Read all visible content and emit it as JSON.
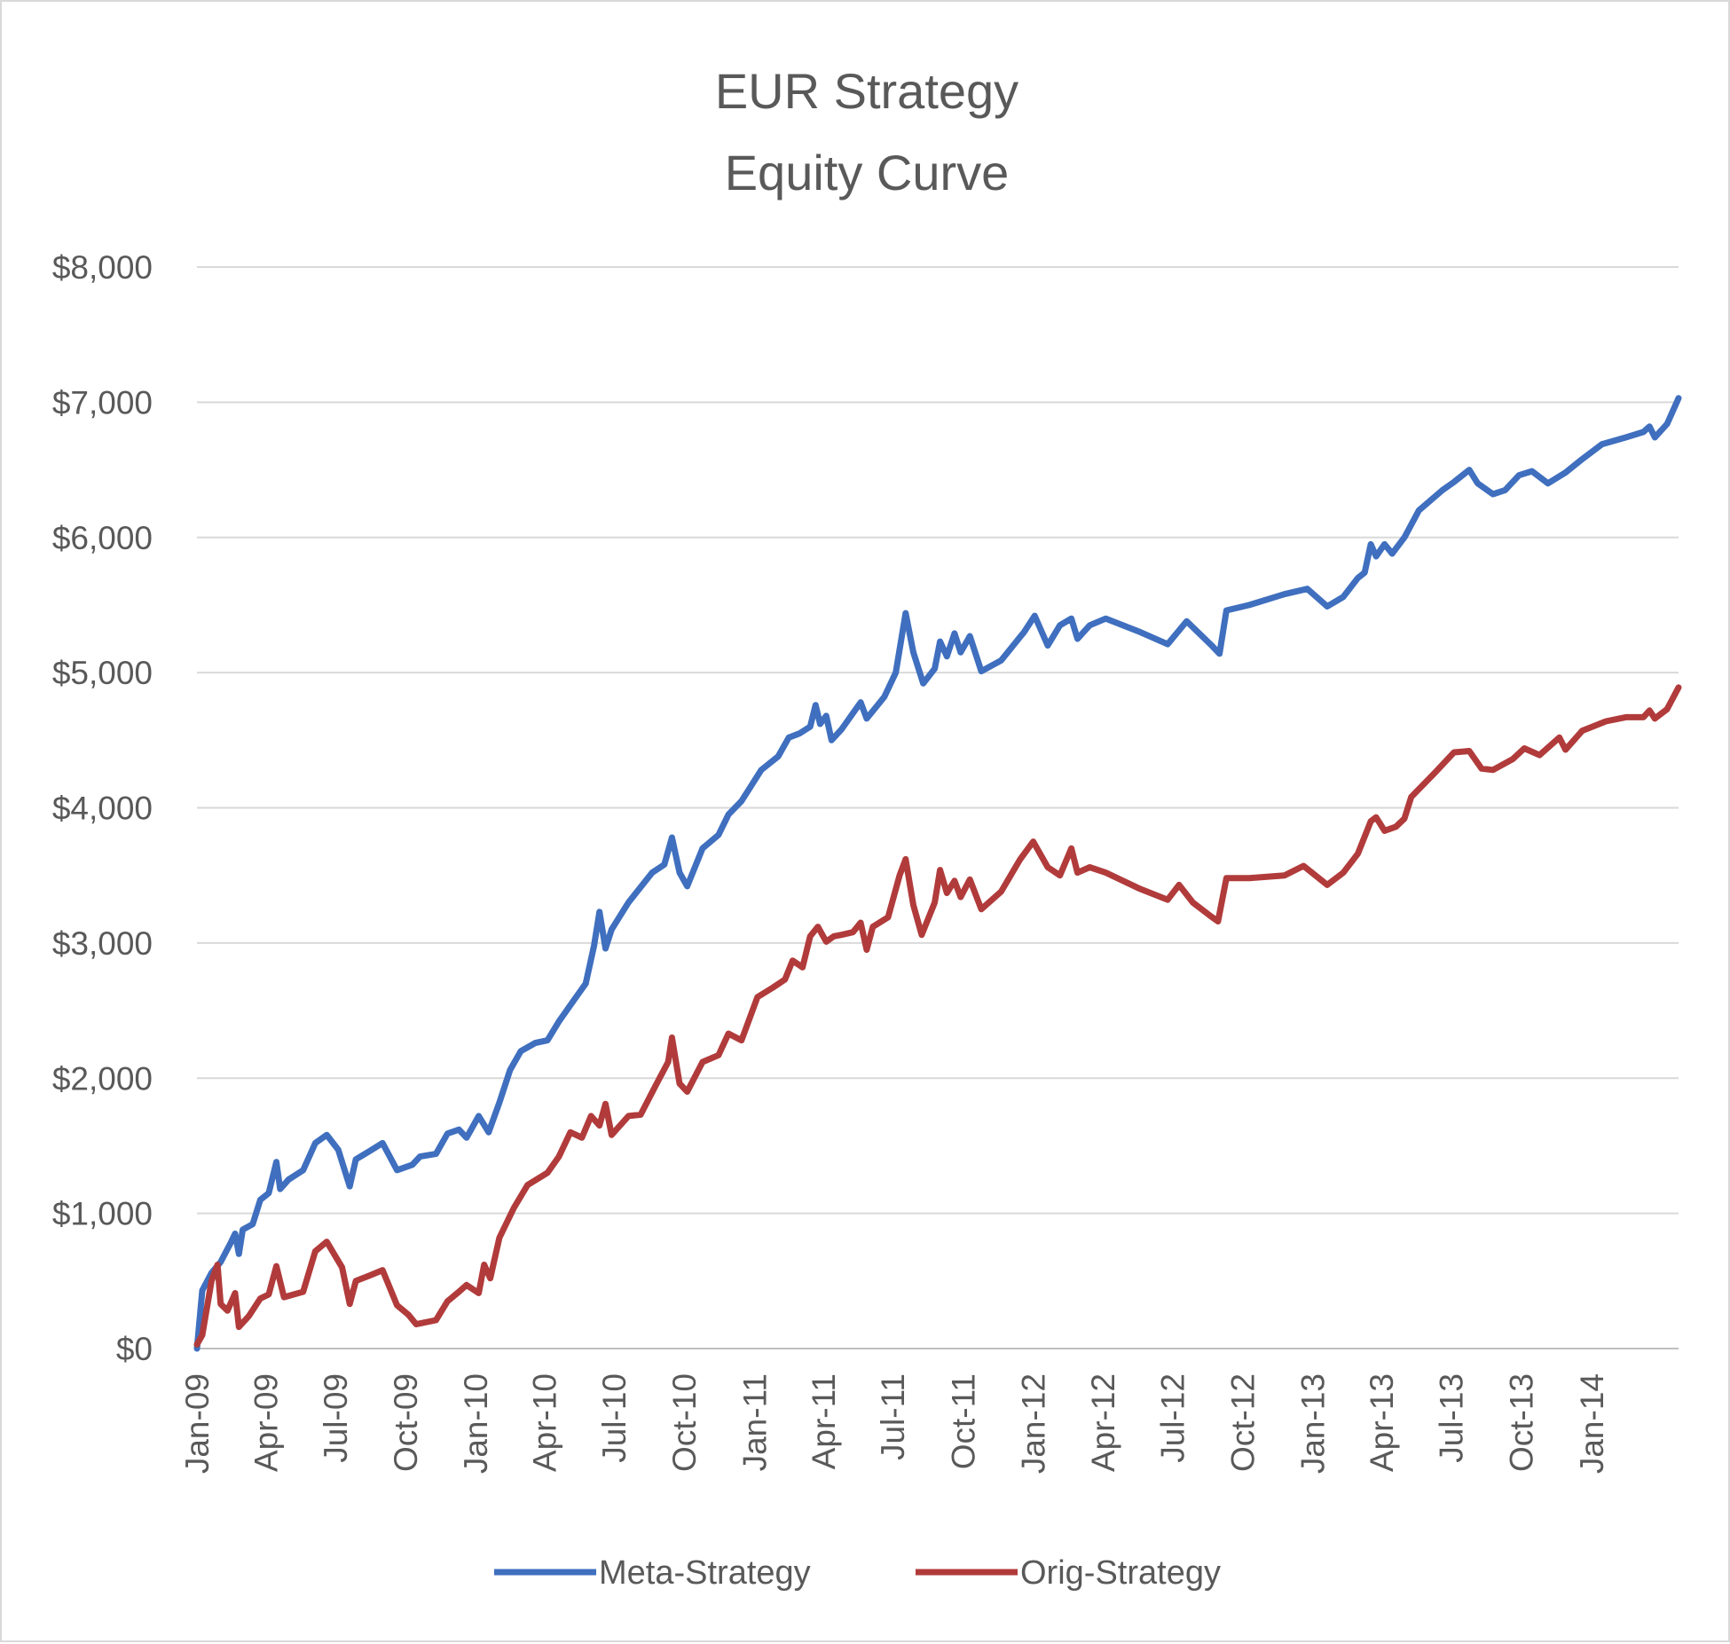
{
  "chart_data": {
    "type": "line",
    "title": [
      "EUR Strategy",
      "Equity Curve"
    ],
    "xlabel": "",
    "ylabel": "",
    "x_ticks": [
      "Jan-09",
      "Apr-09",
      "Jul-09",
      "Oct-09",
      "Jan-10",
      "Apr-10",
      "Jul-10",
      "Oct-10",
      "Jan-11",
      "Apr-11",
      "Jul-11",
      "Oct-11",
      "Jan-12",
      "Apr-12",
      "Jul-12",
      "Oct-12",
      "Jan-13",
      "Apr-13",
      "Jul-13",
      "Oct-13",
      "Jan-14"
    ],
    "x_range": [
      "2009-01-01",
      "2014-04-25"
    ],
    "y_ticks": [
      "$0",
      "$1,000",
      "$2,000",
      "$3,000",
      "$4,000",
      "$5,000",
      "$6,000",
      "$7,000",
      "$8,000"
    ],
    "ylim": [
      0,
      8000
    ],
    "grid": true,
    "legend_position": "bottom",
    "series": [
      {
        "name": "Meta-Strategy",
        "color": "#3f6fbe",
        "points": [
          [
            "2009-01-01",
            0
          ],
          [
            "2009-01-08",
            430
          ],
          [
            "2009-01-20",
            560
          ],
          [
            "2009-02-01",
            640
          ],
          [
            "2009-02-14",
            780
          ],
          [
            "2009-02-20",
            850
          ],
          [
            "2009-02-25",
            700
          ],
          [
            "2009-03-02",
            880
          ],
          [
            "2009-03-15",
            920
          ],
          [
            "2009-03-25",
            1100
          ],
          [
            "2009-04-05",
            1150
          ],
          [
            "2009-04-15",
            1380
          ],
          [
            "2009-04-20",
            1180
          ],
          [
            "2009-05-01",
            1250
          ],
          [
            "2009-05-20",
            1320
          ],
          [
            "2009-06-05",
            1520
          ],
          [
            "2009-06-20",
            1580
          ],
          [
            "2009-07-05",
            1470
          ],
          [
            "2009-07-20",
            1200
          ],
          [
            "2009-07-28",
            1400
          ],
          [
            "2009-08-15",
            1460
          ],
          [
            "2009-09-01",
            1520
          ],
          [
            "2009-09-20",
            1320
          ],
          [
            "2009-10-10",
            1360
          ],
          [
            "2009-10-20",
            1420
          ],
          [
            "2009-11-10",
            1440
          ],
          [
            "2009-11-25",
            1590
          ],
          [
            "2009-12-10",
            1620
          ],
          [
            "2009-12-20",
            1560
          ],
          [
            "2010-01-05",
            1720
          ],
          [
            "2010-01-18",
            1600
          ],
          [
            "2010-02-01",
            1820
          ],
          [
            "2010-02-15",
            2060
          ],
          [
            "2010-03-01",
            2200
          ],
          [
            "2010-03-20",
            2260
          ],
          [
            "2010-04-05",
            2280
          ],
          [
            "2010-04-20",
            2420
          ],
          [
            "2010-05-10",
            2580
          ],
          [
            "2010-05-25",
            2700
          ],
          [
            "2010-06-05",
            2980
          ],
          [
            "2010-06-12",
            3230
          ],
          [
            "2010-06-20",
            2960
          ],
          [
            "2010-06-28",
            3100
          ],
          [
            "2010-07-20",
            3300
          ],
          [
            "2010-08-20",
            3520
          ],
          [
            "2010-09-05",
            3580
          ],
          [
            "2010-09-15",
            3780
          ],
          [
            "2010-09-25",
            3520
          ],
          [
            "2010-10-05",
            3420
          ],
          [
            "2010-10-25",
            3700
          ],
          [
            "2010-11-15",
            3800
          ],
          [
            "2010-11-28",
            3950
          ],
          [
            "2010-12-15",
            4050
          ],
          [
            "2011-01-10",
            4280
          ],
          [
            "2011-02-01",
            4380
          ],
          [
            "2011-02-15",
            4520
          ],
          [
            "2011-03-01",
            4550
          ],
          [
            "2011-03-15",
            4600
          ],
          [
            "2011-03-22",
            4760
          ],
          [
            "2011-03-28",
            4620
          ],
          [
            "2011-04-05",
            4680
          ],
          [
            "2011-04-12",
            4500
          ],
          [
            "2011-04-25",
            4580
          ],
          [
            "2011-05-20",
            4780
          ],
          [
            "2011-05-28",
            4660
          ],
          [
            "2011-06-20",
            4820
          ],
          [
            "2011-07-05",
            5000
          ],
          [
            "2011-07-18",
            5440
          ],
          [
            "2011-07-28",
            5150
          ],
          [
            "2011-08-10",
            4920
          ],
          [
            "2011-08-25",
            5030
          ],
          [
            "2011-09-01",
            5230
          ],
          [
            "2011-09-10",
            5120
          ],
          [
            "2011-09-20",
            5290
          ],
          [
            "2011-09-28",
            5150
          ],
          [
            "2011-10-10",
            5270
          ],
          [
            "2011-10-25",
            5010
          ],
          [
            "2011-11-20",
            5090
          ],
          [
            "2011-12-20",
            5300
          ],
          [
            "2012-01-03",
            5420
          ],
          [
            "2012-01-20",
            5200
          ],
          [
            "2012-02-05",
            5350
          ],
          [
            "2012-02-20",
            5400
          ],
          [
            "2012-02-28",
            5250
          ],
          [
            "2012-03-15",
            5350
          ],
          [
            "2012-04-05",
            5400
          ],
          [
            "2012-05-20",
            5300
          ],
          [
            "2012-06-25",
            5210
          ],
          [
            "2012-07-20",
            5380
          ],
          [
            "2012-08-20",
            5210
          ],
          [
            "2012-09-01",
            5140
          ],
          [
            "2012-09-10",
            5460
          ],
          [
            "2012-10-10",
            5500
          ],
          [
            "2012-11-25",
            5580
          ],
          [
            "2012-12-25",
            5620
          ],
          [
            "2013-01-20",
            5490
          ],
          [
            "2013-02-10",
            5560
          ],
          [
            "2013-03-01",
            5700
          ],
          [
            "2013-03-10",
            5740
          ],
          [
            "2013-03-18",
            5950
          ],
          [
            "2013-03-25",
            5860
          ],
          [
            "2013-04-05",
            5950
          ],
          [
            "2013-04-15",
            5880
          ],
          [
            "2013-05-01",
            6000
          ],
          [
            "2013-05-20",
            6200
          ],
          [
            "2013-06-20",
            6350
          ],
          [
            "2013-07-05",
            6410
          ],
          [
            "2013-07-25",
            6500
          ],
          [
            "2013-08-05",
            6400
          ],
          [
            "2013-08-25",
            6320
          ],
          [
            "2013-09-10",
            6350
          ],
          [
            "2013-09-28",
            6460
          ],
          [
            "2013-10-15",
            6490
          ],
          [
            "2013-11-05",
            6400
          ],
          [
            "2013-11-28",
            6480
          ],
          [
            "2013-12-20",
            6580
          ],
          [
            "2014-01-15",
            6690
          ],
          [
            "2014-02-15",
            6740
          ],
          [
            "2014-03-10",
            6780
          ],
          [
            "2014-03-18",
            6820
          ],
          [
            "2014-03-25",
            6740
          ],
          [
            "2014-04-10",
            6840
          ],
          [
            "2014-04-25",
            7030
          ]
        ]
      },
      {
        "name": "Orig-Strategy",
        "color": "#b13b3b",
        "points": [
          [
            "2009-01-01",
            30
          ],
          [
            "2009-01-08",
            100
          ],
          [
            "2009-01-20",
            500
          ],
          [
            "2009-01-28",
            620
          ],
          [
            "2009-02-01",
            330
          ],
          [
            "2009-02-10",
            280
          ],
          [
            "2009-02-20",
            410
          ],
          [
            "2009-02-25",
            160
          ],
          [
            "2009-03-10",
            240
          ],
          [
            "2009-03-25",
            370
          ],
          [
            "2009-04-05",
            400
          ],
          [
            "2009-04-15",
            610
          ],
          [
            "2009-04-25",
            380
          ],
          [
            "2009-05-20",
            420
          ],
          [
            "2009-06-05",
            720
          ],
          [
            "2009-06-20",
            790
          ],
          [
            "2009-07-10",
            600
          ],
          [
            "2009-07-20",
            330
          ],
          [
            "2009-07-28",
            500
          ],
          [
            "2009-08-15",
            540
          ],
          [
            "2009-09-01",
            580
          ],
          [
            "2009-09-20",
            320
          ],
          [
            "2009-10-05",
            250
          ],
          [
            "2009-10-15",
            180
          ],
          [
            "2009-11-10",
            210
          ],
          [
            "2009-11-25",
            350
          ],
          [
            "2009-12-10",
            420
          ],
          [
            "2009-12-20",
            470
          ],
          [
            "2010-01-05",
            410
          ],
          [
            "2010-01-12",
            620
          ],
          [
            "2010-01-20",
            520
          ],
          [
            "2010-02-01",
            820
          ],
          [
            "2010-02-20",
            1040
          ],
          [
            "2010-03-10",
            1210
          ],
          [
            "2010-04-05",
            1300
          ],
          [
            "2010-04-20",
            1420
          ],
          [
            "2010-05-05",
            1600
          ],
          [
            "2010-05-20",
            1560
          ],
          [
            "2010-06-01",
            1720
          ],
          [
            "2010-06-12",
            1650
          ],
          [
            "2010-06-20",
            1810
          ],
          [
            "2010-06-28",
            1580
          ],
          [
            "2010-07-20",
            1720
          ],
          [
            "2010-08-05",
            1730
          ],
          [
            "2010-08-25",
            1950
          ],
          [
            "2010-09-10",
            2120
          ],
          [
            "2010-09-15",
            2300
          ],
          [
            "2010-09-25",
            1960
          ],
          [
            "2010-10-05",
            1900
          ],
          [
            "2010-10-25",
            2120
          ],
          [
            "2010-11-15",
            2170
          ],
          [
            "2010-11-28",
            2330
          ],
          [
            "2010-12-15",
            2280
          ],
          [
            "2011-01-05",
            2600
          ],
          [
            "2011-01-25",
            2670
          ],
          [
            "2011-02-10",
            2730
          ],
          [
            "2011-02-20",
            2870
          ],
          [
            "2011-03-05",
            2820
          ],
          [
            "2011-03-15",
            3050
          ],
          [
            "2011-03-25",
            3120
          ],
          [
            "2011-04-05",
            3010
          ],
          [
            "2011-04-15",
            3050
          ],
          [
            "2011-04-25",
            3060
          ],
          [
            "2011-05-10",
            3080
          ],
          [
            "2011-05-20",
            3150
          ],
          [
            "2011-05-28",
            2950
          ],
          [
            "2011-06-05",
            3120
          ],
          [
            "2011-06-25",
            3190
          ],
          [
            "2011-07-10",
            3500
          ],
          [
            "2011-07-18",
            3620
          ],
          [
            "2011-07-28",
            3280
          ],
          [
            "2011-08-08",
            3060
          ],
          [
            "2011-08-25",
            3300
          ],
          [
            "2011-09-01",
            3540
          ],
          [
            "2011-09-10",
            3370
          ],
          [
            "2011-09-20",
            3460
          ],
          [
            "2011-09-28",
            3340
          ],
          [
            "2011-10-10",
            3470
          ],
          [
            "2011-10-25",
            3250
          ],
          [
            "2011-11-20",
            3380
          ],
          [
            "2011-12-15",
            3620
          ],
          [
            "2012-01-01",
            3750
          ],
          [
            "2012-01-20",
            3560
          ],
          [
            "2012-02-05",
            3500
          ],
          [
            "2012-02-20",
            3700
          ],
          [
            "2012-02-28",
            3520
          ],
          [
            "2012-03-15",
            3560
          ],
          [
            "2012-04-05",
            3520
          ],
          [
            "2012-05-20",
            3400
          ],
          [
            "2012-06-25",
            3320
          ],
          [
            "2012-07-10",
            3430
          ],
          [
            "2012-07-28",
            3300
          ],
          [
            "2012-08-20",
            3200
          ],
          [
            "2012-08-30",
            3160
          ],
          [
            "2012-09-10",
            3480
          ],
          [
            "2012-10-10",
            3480
          ],
          [
            "2012-11-25",
            3500
          ],
          [
            "2012-12-20",
            3570
          ],
          [
            "2013-01-20",
            3430
          ],
          [
            "2013-02-10",
            3520
          ],
          [
            "2013-03-01",
            3660
          ],
          [
            "2013-03-18",
            3900
          ],
          [
            "2013-03-25",
            3930
          ],
          [
            "2013-04-05",
            3830
          ],
          [
            "2013-04-20",
            3860
          ],
          [
            "2013-05-01",
            3920
          ],
          [
            "2013-05-10",
            4080
          ],
          [
            "2013-06-10",
            4260
          ],
          [
            "2013-07-05",
            4410
          ],
          [
            "2013-07-25",
            4420
          ],
          [
            "2013-08-10",
            4290
          ],
          [
            "2013-08-25",
            4280
          ],
          [
            "2013-09-20",
            4360
          ],
          [
            "2013-10-05",
            4440
          ],
          [
            "2013-10-25",
            4390
          ],
          [
            "2013-11-20",
            4520
          ],
          [
            "2013-11-28",
            4430
          ],
          [
            "2013-12-20",
            4570
          ],
          [
            "2014-01-20",
            4640
          ],
          [
            "2014-02-15",
            4670
          ],
          [
            "2014-03-10",
            4670
          ],
          [
            "2014-03-18",
            4720
          ],
          [
            "2014-03-25",
            4660
          ],
          [
            "2014-04-10",
            4730
          ],
          [
            "2014-04-25",
            4890
          ]
        ]
      }
    ]
  }
}
